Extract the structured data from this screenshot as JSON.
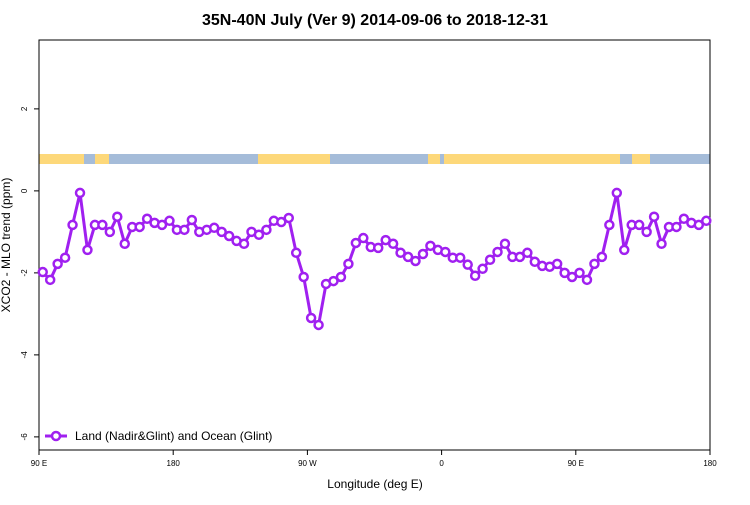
{
  "chart_data": {
    "type": "line",
    "title": "35N-40N July (Ver 9)   2014-09-06 to 2018-12-31",
    "x_label": "Longitude (deg E)",
    "y_label": "XCO2 - MLO trend (ppm)",
    "xlim": [
      90,
      540
    ],
    "ylim": [
      -6.32,
      3.68
    ],
    "xticks": [
      {
        "value": 90,
        "label": "90 E"
      },
      180,
      {
        "value": 270,
        "label": "90 W"
      },
      {
        "value": 360,
        "label": "0"
      },
      {
        "value": 450,
        "label": "90 E"
      },
      {
        "value": 540,
        "label": "180"
      }
    ],
    "yticks": [
      2,
      0,
      -2,
      -4,
      -6
    ],
    "legend": "bottom-left",
    "x": [
      92.5,
      97.5,
      102.5,
      107.5,
      112.5,
      117.5,
      122.5,
      127.5,
      132.5,
      137.5,
      142.5,
      147.5,
      152.5,
      157.5,
      162.5,
      167.5,
      172.5,
      177.5,
      182.5,
      187.5,
      192.5,
      197.5,
      202.5,
      207.5,
      212.5,
      217.5,
      222.5,
      227.5,
      232.5,
      237.5,
      242.5,
      247.5,
      252.5,
      257.5,
      262.5,
      267.5,
      272.5,
      277.5,
      282.5,
      287.5,
      292.5,
      297.5,
      302.5,
      307.5,
      312.5,
      317.5,
      322.5,
      327.5,
      332.5,
      337.5,
      342.5,
      347.5,
      352.5,
      357.5,
      362.5,
      367.5,
      372.5,
      377.5,
      382.5,
      387.5,
      392.5,
      397.5,
      402.5,
      407.5,
      412.5,
      417.5,
      422.5,
      427.5,
      432.5,
      437.5,
      442.5,
      447.5,
      452.5,
      457.5,
      462.5,
      467.5,
      472.5,
      477.5,
      482.5,
      487.5,
      492.5,
      497.5,
      502.5,
      507.5,
      512.5,
      517.5,
      522.5,
      527.5,
      532.5,
      537.5
    ],
    "series": [
      {
        "name": "Land (Nadir&Glint) and Ocean (Glint)",
        "color": "#a020f0",
        "values": [
          -1.98,
          -2.17,
          -1.78,
          -1.63,
          -0.83,
          -0.05,
          -1.44,
          -0.83,
          -0.83,
          -1.0,
          -0.63,
          -1.29,
          -0.88,
          -0.88,
          -0.68,
          -0.78,
          -0.83,
          -0.73,
          -0.95,
          -0.95,
          -0.71,
          -1.0,
          -0.95,
          -0.9,
          -1.0,
          -1.1,
          -1.22,
          -1.29,
          -1.0,
          -1.07,
          -0.95,
          -0.73,
          -0.76,
          -0.66,
          -1.51,
          -2.1,
          -3.1,
          -3.27,
          -2.27,
          -2.2,
          -2.1,
          -1.78,
          -1.27,
          -1.15,
          -1.37,
          -1.39,
          -1.2,
          -1.29,
          -1.51,
          -1.61,
          -1.71,
          -1.54,
          -1.34,
          -1.44,
          -1.49,
          -1.63,
          -1.63,
          -1.8,
          -2.07,
          -1.9,
          -1.68,
          -1.49,
          -1.29,
          -1.61,
          -1.61,
          -1.51,
          -1.73,
          -1.83,
          -1.85,
          -1.78,
          -2.0,
          -2.1,
          -2.0,
          -2.17,
          -1.78,
          -1.61,
          -0.83,
          -0.05,
          -1.44,
          -0.83,
          -0.83,
          -1.0,
          -0.63,
          -1.29,
          -0.88,
          -0.88,
          -0.68,
          -0.78,
          -0.83,
          -0.73
        ]
      }
    ]
  }
}
